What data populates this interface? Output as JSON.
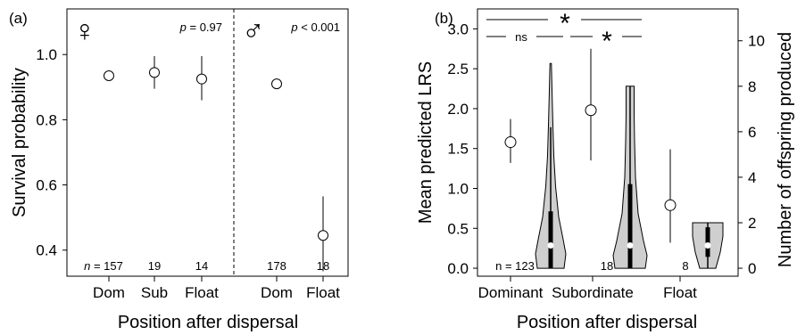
{
  "chart_data": [
    {
      "type": "scatter",
      "panel_label": "(a)",
      "xlabel": "Position after dispersal",
      "ylabel": "Survival probability",
      "ylim": [
        0.32,
        1.14
      ],
      "yticks": [
        "0.4",
        "0.6",
        "0.8",
        "1.0"
      ],
      "yticks_values": [
        0.4,
        0.6,
        0.8,
        1.0
      ],
      "grid": false,
      "groups": [
        {
          "symbol": "♀",
          "p_prefix": "p",
          "p_text": " = 0.97",
          "n_prefix": "n",
          "categories": [
            "Dom",
            "Sub",
            "Float"
          ],
          "points": [
            {
              "x": "Dom",
              "y": 0.935,
              "low": 0.925,
              "high": 0.945,
              "n": "= 157"
            },
            {
              "x": "Sub",
              "y": 0.945,
              "low": 0.895,
              "high": 0.995,
              "n": "19"
            },
            {
              "x": "Float",
              "y": 0.925,
              "low": 0.86,
              "high": 0.995,
              "n": "14"
            }
          ]
        },
        {
          "symbol": "♂",
          "p_prefix": "p",
          "p_text": " < 0.001",
          "categories": [
            "Dom",
            "Float"
          ],
          "points": [
            {
              "x": "Dom",
              "y": 0.91,
              "low": 0.895,
              "high": 0.925,
              "n": "178"
            },
            {
              "x": "Float",
              "y": 0.445,
              "low": 0.335,
              "high": 0.565,
              "n": "18"
            }
          ]
        }
      ]
    },
    {
      "type": "scatter",
      "panel_label": "(b)",
      "xlabel": "Position after dispersal",
      "ylabel": "Mean predicted LRS",
      "y2label": "Number of offspring produced",
      "ylim": [
        -0.1,
        3.25
      ],
      "yticks": [
        "0.0",
        "0.5",
        "1.0",
        "1.5",
        "2.0",
        "2.5",
        "3.0"
      ],
      "yticks_values": [
        0,
        0.5,
        1.0,
        1.5,
        2.0,
        2.5,
        3.0
      ],
      "y2lim": [
        -0.35,
        11.4
      ],
      "y2ticks": [
        "0",
        "2",
        "4",
        "6",
        "8",
        "10"
      ],
      "y2ticks_values": [
        0,
        2,
        4,
        6,
        8,
        10
      ],
      "grid": false,
      "categories": [
        "Dominant",
        "Subordinate",
        "Float"
      ],
      "points": [
        {
          "x": "Dominant",
          "y": 1.58,
          "low": 1.32,
          "high": 1.87,
          "n": "n = 123"
        },
        {
          "x": "Subordinate",
          "y": 1.98,
          "low": 1.35,
          "high": 2.75,
          "n": "18"
        },
        {
          "x": "Float",
          "y": 0.79,
          "low": 0.32,
          "high": 1.49,
          "n": "8"
        }
      ],
      "violins_offspring": [
        {
          "x": "Dominant",
          "min": 0,
          "q1": 0,
          "median": 1,
          "q3": 2.5,
          "whisker_high": 6.2,
          "max": 9
        },
        {
          "x": "Subordinate",
          "min": 0,
          "q1": 0,
          "median": 1,
          "q3": 3.7,
          "whisker_high": 8,
          "max": 8
        },
        {
          "x": "Float",
          "min": 0,
          "q1": 0.5,
          "median": 1,
          "q3": 1.8,
          "whisker_high": 2,
          "max": 2
        }
      ],
      "comparisons": [
        {
          "between": [
            "Dominant",
            "Subordinate"
          ],
          "label": "ns"
        },
        {
          "between": [
            "Subordinate",
            "Float"
          ],
          "label": "*"
        },
        {
          "between": [
            "Dominant",
            "Float"
          ],
          "label": "*"
        }
      ]
    }
  ]
}
